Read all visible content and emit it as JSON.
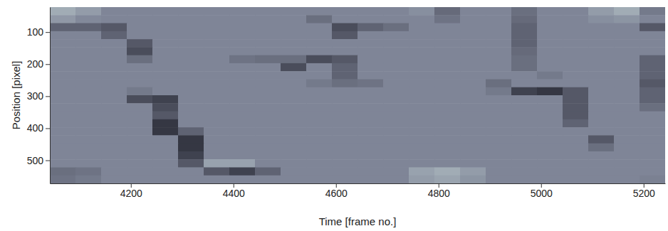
{
  "chart_data": {
    "type": "heatmap",
    "x_label": "Time [frame no.]",
    "y_label": "Position [pixel]",
    "xlim": [
      4042,
      5242
    ],
    "ylim": [
      22,
      572
    ],
    "xticks": [
      4200,
      4400,
      4600,
      4800,
      5000,
      5200
    ],
    "yticks": [
      100,
      200,
      300,
      400,
      500
    ],
    "zlim": [
      0,
      100
    ],
    "x": [
      4067,
      4117,
      4167,
      4217,
      4267,
      4317,
      4367,
      4417,
      4467,
      4517,
      4567,
      4617,
      4667,
      4717,
      4767,
      4817,
      4867,
      4917,
      4967,
      5017,
      5067,
      5117,
      5167,
      5217
    ],
    "y": [
      34.5,
      59.5,
      84.5,
      109.5,
      134.5,
      159.5,
      184.5,
      209.5,
      234.5,
      259.5,
      284.5,
      309.5,
      334.5,
      359.5,
      384.5,
      409.5,
      434.5,
      459.5,
      484.5,
      509.5,
      534.5,
      559.5
    ],
    "z": [
      [
        70,
        62,
        50,
        50,
        50,
        50,
        50,
        50,
        50,
        50,
        50,
        50,
        50,
        50,
        55,
        38,
        50,
        50,
        40,
        50,
        50,
        62,
        70,
        45
      ],
      [
        60,
        52,
        50,
        50,
        50,
        50,
        50,
        50,
        50,
        50,
        40,
        50,
        50,
        50,
        50,
        42,
        50,
        50,
        38,
        50,
        50,
        55,
        58,
        50
      ],
      [
        35,
        35,
        30,
        50,
        50,
        50,
        50,
        50,
        50,
        50,
        50,
        25,
        35,
        40,
        50,
        50,
        50,
        50,
        35,
        50,
        50,
        50,
        50,
        30
      ],
      [
        50,
        50,
        35,
        50,
        50,
        50,
        50,
        50,
        50,
        50,
        50,
        30,
        50,
        50,
        50,
        50,
        50,
        50,
        35,
        50,
        50,
        50,
        50,
        50
      ],
      [
        50,
        50,
        50,
        30,
        50,
        50,
        50,
        50,
        50,
        50,
        50,
        50,
        50,
        50,
        50,
        50,
        50,
        50,
        35,
        50,
        50,
        50,
        50,
        50
      ],
      [
        50,
        50,
        50,
        25,
        50,
        50,
        50,
        50,
        50,
        50,
        50,
        50,
        50,
        50,
        50,
        50,
        50,
        50,
        38,
        50,
        50,
        50,
        50,
        50
      ],
      [
        50,
        50,
        50,
        40,
        50,
        50,
        50,
        42,
        40,
        40,
        25,
        30,
        50,
        50,
        50,
        50,
        50,
        50,
        40,
        50,
        50,
        50,
        50,
        35
      ],
      [
        50,
        50,
        50,
        50,
        50,
        50,
        50,
        50,
        50,
        25,
        50,
        35,
        50,
        50,
        50,
        50,
        50,
        50,
        40,
        50,
        50,
        50,
        50,
        35
      ],
      [
        50,
        50,
        50,
        50,
        50,
        50,
        50,
        50,
        50,
        50,
        50,
        35,
        50,
        50,
        50,
        50,
        50,
        50,
        50,
        45,
        50,
        50,
        50,
        35
      ],
      [
        50,
        50,
        50,
        50,
        50,
        50,
        50,
        50,
        50,
        50,
        45,
        40,
        42,
        50,
        50,
        50,
        50,
        40,
        50,
        50,
        50,
        50,
        50,
        30
      ],
      [
        50,
        50,
        50,
        45,
        50,
        50,
        50,
        50,
        50,
        50,
        50,
        50,
        50,
        50,
        50,
        50,
        50,
        45,
        20,
        15,
        30,
        50,
        50,
        35
      ],
      [
        50,
        50,
        50,
        25,
        20,
        50,
        50,
        50,
        50,
        50,
        50,
        50,
        50,
        50,
        50,
        50,
        50,
        50,
        50,
        50,
        30,
        50,
        50,
        35
      ],
      [
        50,
        50,
        50,
        50,
        25,
        50,
        50,
        50,
        50,
        50,
        50,
        50,
        50,
        50,
        50,
        50,
        50,
        50,
        50,
        50,
        30,
        50,
        50,
        40
      ],
      [
        50,
        50,
        50,
        50,
        30,
        50,
        50,
        50,
        50,
        50,
        50,
        50,
        50,
        50,
        50,
        50,
        50,
        50,
        50,
        50,
        30,
        50,
        50,
        50
      ],
      [
        50,
        50,
        50,
        50,
        15,
        50,
        50,
        50,
        50,
        50,
        50,
        50,
        50,
        50,
        50,
        50,
        50,
        50,
        50,
        50,
        35,
        50,
        50,
        50
      ],
      [
        50,
        50,
        50,
        50,
        15,
        35,
        50,
        50,
        50,
        50,
        50,
        50,
        50,
        50,
        50,
        50,
        50,
        50,
        50,
        50,
        50,
        50,
        50,
        50
      ],
      [
        50,
        50,
        50,
        50,
        50,
        15,
        50,
        50,
        50,
        50,
        50,
        50,
        50,
        50,
        50,
        50,
        50,
        50,
        50,
        50,
        50,
        30,
        50,
        50
      ],
      [
        50,
        50,
        50,
        50,
        50,
        15,
        50,
        50,
        50,
        50,
        50,
        50,
        50,
        50,
        50,
        50,
        50,
        50,
        50,
        50,
        50,
        40,
        50,
        50
      ],
      [
        50,
        50,
        50,
        50,
        50,
        20,
        50,
        50,
        50,
        50,
        50,
        50,
        50,
        50,
        50,
        50,
        50,
        50,
        50,
        50,
        50,
        50,
        50,
        50
      ],
      [
        50,
        50,
        50,
        50,
        50,
        30,
        65,
        65,
        50,
        50,
        50,
        50,
        50,
        50,
        50,
        50,
        50,
        50,
        50,
        50,
        50,
        50,
        50,
        50
      ],
      [
        40,
        42,
        50,
        50,
        50,
        50,
        30,
        20,
        35,
        50,
        50,
        50,
        50,
        50,
        65,
        70,
        62,
        50,
        50,
        50,
        50,
        50,
        50,
        50
      ],
      [
        42,
        45,
        50,
        50,
        50,
        50,
        50,
        50,
        50,
        50,
        50,
        50,
        50,
        50,
        62,
        66,
        58,
        50,
        50,
        50,
        50,
        50,
        50,
        48
      ]
    ]
  }
}
